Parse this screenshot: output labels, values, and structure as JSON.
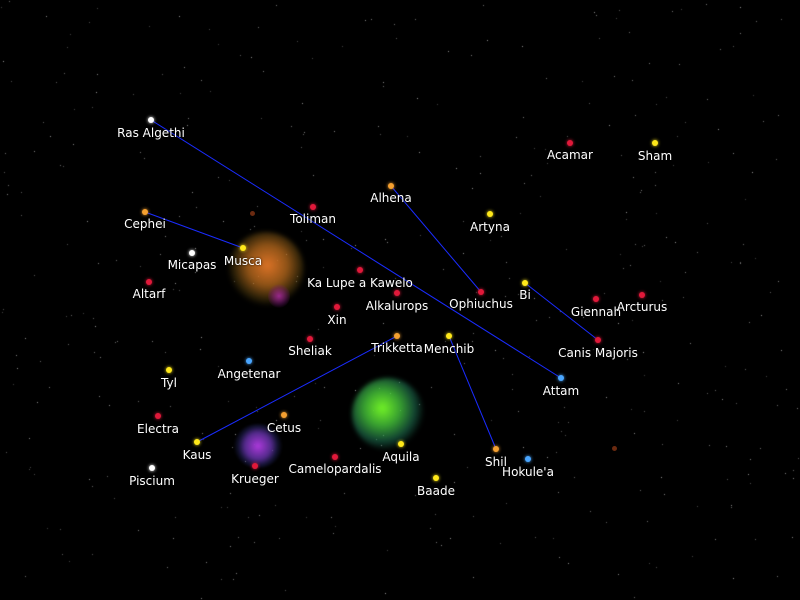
{
  "colors": {
    "background": "#000000",
    "link": "#1a2cff",
    "star_white": "#ffffff",
    "star_red": "#e0193a",
    "star_orange": "#f5a030",
    "star_yellow": "#ffe81a",
    "star_blue": "#4aa6ff"
  },
  "stars": [
    {
      "name": "Ras Algethi",
      "color": "#ffffff"
    },
    {
      "name": "Acamar",
      "color": "#e0193a"
    },
    {
      "name": "Sham",
      "color": "#ffe81a"
    },
    {
      "name": "Alhena",
      "color": "#f5a030"
    },
    {
      "name": "Toliman",
      "color": "#e0193a"
    },
    {
      "name": "Cephei",
      "color": "#f5a030"
    },
    {
      "name": "Artyna",
      "color": "#ffe81a"
    },
    {
      "name": "Musca",
      "color": "#ffe81a"
    },
    {
      "name": "Micapas",
      "color": "#ffffff"
    },
    {
      "name": "Ka Lupe a Kawelo",
      "color": "#e0193a"
    },
    {
      "name": "Bi",
      "color": "#ffe81a"
    },
    {
      "name": "Altarf",
      "color": "#e0193a"
    },
    {
      "name": "Alkalurops",
      "color": "#e0193a"
    },
    {
      "name": "Ophiuchus",
      "color": "#e0193a"
    },
    {
      "name": "Giennah",
      "color": "#e0193a"
    },
    {
      "name": "Arcturus",
      "color": "#e0193a"
    },
    {
      "name": "Xin",
      "color": "#e0193a"
    },
    {
      "name": "Sheliak",
      "color": "#e0193a"
    },
    {
      "name": "Trikketta",
      "color": "#f5a030"
    },
    {
      "name": "Menchib",
      "color": "#ffe81a"
    },
    {
      "name": "Canis Majoris",
      "color": "#e0193a"
    },
    {
      "name": "Angetenar",
      "color": "#4aa6ff"
    },
    {
      "name": "Tyl",
      "color": "#ffe81a"
    },
    {
      "name": "Attam",
      "color": "#4aa6ff"
    },
    {
      "name": "Electra",
      "color": "#e0193a"
    },
    {
      "name": "Cetus",
      "color": "#f5a030"
    },
    {
      "name": "Kaus",
      "color": "#ffe81a"
    },
    {
      "name": "Aquila",
      "color": "#ffe81a"
    },
    {
      "name": "Shil",
      "color": "#f5a030"
    },
    {
      "name": "Camelopardalis",
      "color": "#e0193a"
    },
    {
      "name": "Hokule'a",
      "color": "#4aa6ff"
    },
    {
      "name": "Krueger",
      "color": "#e0193a"
    },
    {
      "name": "Piscium",
      "color": "#ffffff"
    },
    {
      "name": "Baade",
      "color": "#ffe81a"
    }
  ],
  "links": [
    [
      "Ras Algethi",
      "Attam"
    ],
    [
      "Cephei",
      "Musca"
    ],
    [
      "Alhena",
      "Ophiuchus"
    ],
    [
      "Bi",
      "Canis Majoris"
    ],
    [
      "Trikketta",
      "Kaus"
    ],
    [
      "Menchib",
      "Shil"
    ]
  ]
}
